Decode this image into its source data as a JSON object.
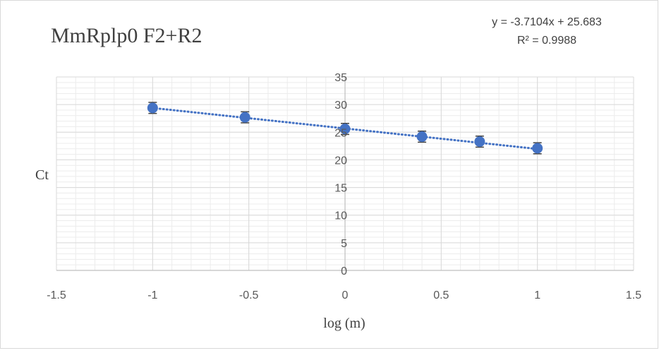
{
  "chart_data": {
    "type": "scatter",
    "title": "MmRplp0 F2+R2",
    "xlabel": "log (m)",
    "ylabel": "Ct",
    "xlim": [
      -1.5,
      1.5
    ],
    "ylim": [
      0,
      35
    ],
    "x_ticks": [
      -1.5,
      -1,
      -0.5,
      0,
      0.5,
      1,
      1.5
    ],
    "y_ticks": [
      0,
      5,
      10,
      15,
      20,
      25,
      30,
      35
    ],
    "x_tick_labels": [
      "-1.5",
      "-1",
      "-0.5",
      "0",
      "0.5",
      "1",
      "1.5"
    ],
    "y_tick_labels": [
      "0",
      "5",
      "10",
      "15",
      "20",
      "25",
      "30",
      "35"
    ],
    "grid": "major and minor",
    "points": [
      {
        "x": -1,
        "y": 29.4,
        "err": 1.0
      },
      {
        "x": -0.52,
        "y": 27.7,
        "err": 1.0
      },
      {
        "x": 0,
        "y": 25.6,
        "err": 1.0
      },
      {
        "x": 0.4,
        "y": 24.2,
        "err": 1.0
      },
      {
        "x": 0.7,
        "y": 23.3,
        "err": 1.0
      },
      {
        "x": 1,
        "y": 22.1,
        "err": 1.0
      }
    ],
    "trendline": {
      "type": "linear",
      "slope": -3.7104,
      "intercept": 25.683,
      "equation_text": "y = -3.7104x + 25.683",
      "r2_text": "R² = 0.9988",
      "style": "dotted"
    },
    "colors": {
      "marker": "#4472C4",
      "trendline": "#4472C4",
      "errorbar": "#404040",
      "grid": "#d9d9d9",
      "axis": "#bfbfbf"
    }
  }
}
